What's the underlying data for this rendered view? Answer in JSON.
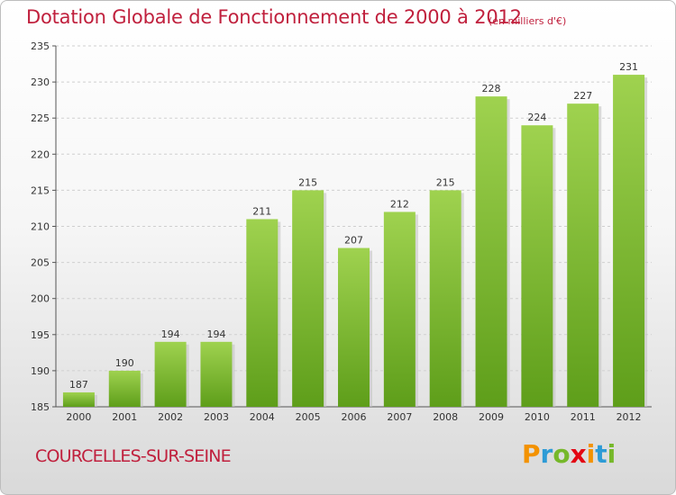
{
  "header": {
    "title": "Dotation Globale de Fonctionnement de 2000 à 2012",
    "subtitle": "(en milliers d'€)"
  },
  "footer": {
    "commune": "COURCELLES-SUR-SEINE",
    "logo_letters": [
      "P",
      "r",
      "o",
      "x",
      "i",
      "t",
      "i"
    ],
    "logo_colors": [
      "#f39200",
      "#2d9bd6",
      "#76b82a",
      "#e30613",
      "#f39200",
      "#2d9bd6",
      "#76b82a"
    ]
  },
  "chart_data": {
    "type": "bar",
    "title": "Dotation Globale de Fonctionnement de 2000 à 2012",
    "subtitle": "(en milliers d'€)",
    "categories": [
      "2000",
      "2001",
      "2002",
      "2003",
      "2004",
      "2005",
      "2006",
      "2007",
      "2008",
      "2009",
      "2010",
      "2011",
      "2012"
    ],
    "values": [
      187,
      190,
      194,
      194,
      211,
      215,
      207,
      212,
      215,
      228,
      224,
      227,
      231
    ],
    "ylim": [
      185,
      235
    ],
    "yticks": [
      185,
      190,
      195,
      200,
      205,
      210,
      215,
      220,
      225,
      230,
      235
    ],
    "grid": true,
    "bar_color_top": "#9fd24f",
    "bar_color_bottom": "#5e9e1a"
  }
}
